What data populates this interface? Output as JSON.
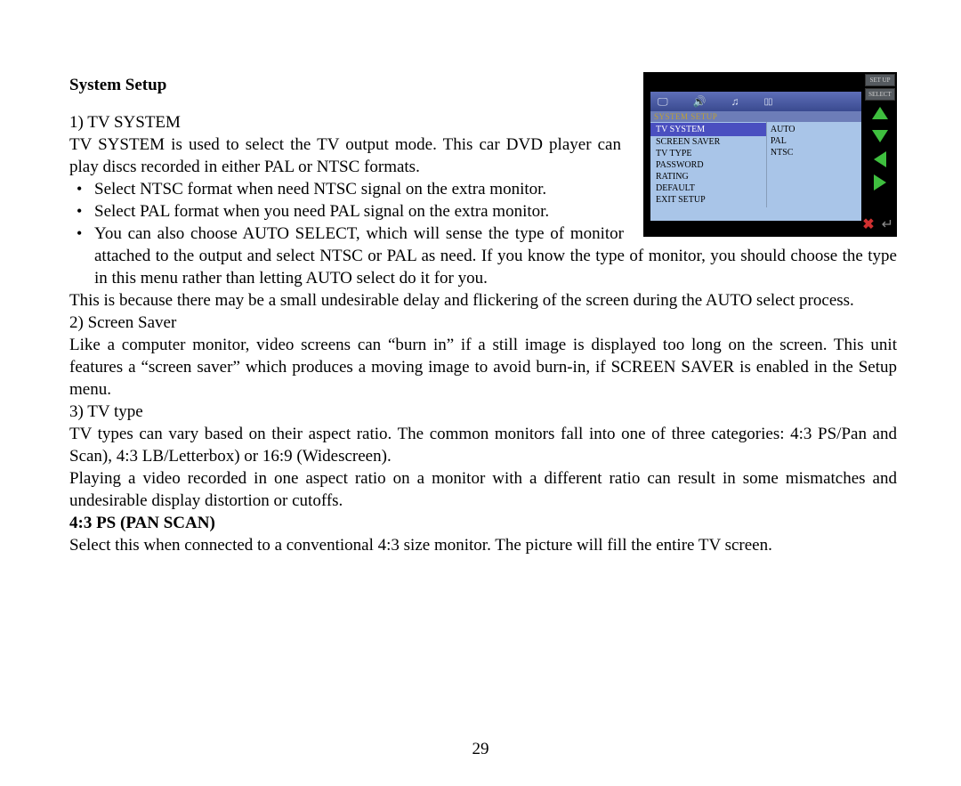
{
  "heading": "System Setup",
  "section1_label": "1) TV SYSTEM",
  "section1_intro": "TV SYSTEM is used to select the TV output mode. This car DVD player can play discs recorded in either PAL or NTSC formats.",
  "bullets": [
    "Select NTSC format when need NTSC signal on the extra monitor.",
    "Select PAL format when you need PAL signal on the extra monitor.",
    "You can also choose AUTO SELECT, which will sense the type of monitor attached to the output and select NTSC or PAL as need. If you know the type of monitor, you should choose the type in this menu rather than letting AUTO select do it for you."
  ],
  "auto_note": "This is because there may be a small undesirable delay and flickering of the screen during the AUTO select process.",
  "section2_label": "2) Screen Saver",
  "section2_body": "Like a computer monitor, video screens can “burn in” if a still image is displayed too long on the screen. This unit features a “screen saver” which produces a moving image to avoid burn-in, if SCREEN SAVER is enabled in the Setup menu.",
  "section3_label": "3) TV type",
  "section3_body1": "TV types can vary based on their aspect ratio. The common monitors fall into one of three categories: 4:3 PS/Pan and Scan), 4:3 LB/Letterbox) or 16:9 (Widescreen).",
  "section3_body2": "Playing a video recorded in one aspect ratio on a monitor with a different ratio can result in some mismatches and undesirable display distortion or cutoffs.",
  "subheading": "4:3 PS (PAN SCAN)",
  "sub_body": "Select this when connected to a conventional 4:3 size monitor. The picture will fill the entire TV screen.",
  "page_number": "29",
  "screenshot": {
    "side_labels": {
      "setup": "SET UP",
      "select": "SELECT"
    },
    "menu_title": "SYSTEM SETUP",
    "left_items": [
      "TV SYSTEM",
      "SCREEN SAVER",
      "TV TYPE",
      "PASSWORD",
      "RATING",
      "DEFAULT",
      "EXIT SETUP"
    ],
    "right_items": [
      "AUTO",
      "PAL",
      "NTSC"
    ],
    "colors": {
      "bg": "#000000",
      "panel": "#a9c5e8",
      "header_grad_top": "#5e6fb8",
      "header_grad_bottom": "#3a4a90",
      "highlight": "#4a4fc0",
      "arrow": "#3fbf3f",
      "btn_bg": "#555a5f",
      "red": "#d03030"
    }
  }
}
